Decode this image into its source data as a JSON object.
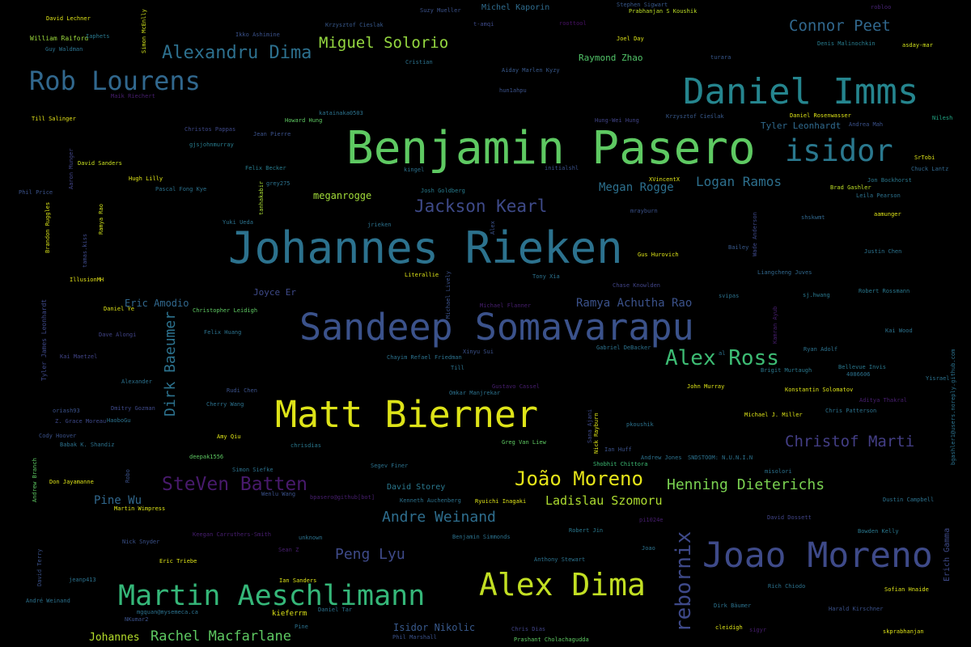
{
  "words": [
    {
      "text": "Benjamin Pasero",
      "color": "#5ec962"
    },
    {
      "text": "Johannes Rieken",
      "color": "#2c728e"
    },
    {
      "text": "Daniel Imms",
      "color": "#25858e"
    },
    {
      "text": "Sandeep Somavarapu",
      "color": "#3b528b"
    },
    {
      "text": "Matt Bierner",
      "color": "#dde318"
    },
    {
      "text": "Joao Moreno",
      "color": "#3e4a89"
    },
    {
      "text": "isidor",
      "color": "#2a788e"
    },
    {
      "text": "Alex Dima",
      "color": "#c2df23"
    },
    {
      "text": "Martin Aeschlimann",
      "color": "#35b779"
    },
    {
      "text": "Rob Lourens",
      "color": "#31688e"
    },
    {
      "text": "rebornix",
      "color": "#3e4989"
    },
    {
      "text": "Alex Ross",
      "color": "#3dbc74"
    },
    {
      "text": "Jackson Kearl",
      "color": "#3e4a89"
    },
    {
      "text": "SteVen Batten",
      "color": "#481a6c"
    },
    {
      "text": "João Moreno",
      "color": "#e5e419"
    },
    {
      "text": "Alexandru Dima",
      "color": "#2d708e"
    },
    {
      "text": "Miguel Solorio",
      "color": "#95d840"
    },
    {
      "text": "Christof Marti",
      "color": "#433e85"
    },
    {
      "text": "Connor Peet",
      "color": "#31688e"
    },
    {
      "text": "Henning Dieterichs",
      "color": "#7ad151"
    },
    {
      "text": "Dirk Baeumer",
      "color": "#2c728e"
    },
    {
      "text": "Andre Weinand",
      "color": "#2e6e8e"
    },
    {
      "text": "Rachel Macfarlane",
      "color": "#5ec962"
    },
    {
      "text": "Peng Lyu",
      "color": "#3e4a89"
    },
    {
      "text": "Ladislau Szomoru",
      "color": "#addc30"
    },
    {
      "text": "Logan Ramos",
      "color": "#2d708e"
    },
    {
      "text": "Megan Rogge",
      "color": "#2d708e"
    },
    {
      "text": "Ramya Achutha Rao",
      "color": "#3b528b"
    },
    {
      "text": "Pine Wu",
      "color": "#31688e"
    },
    {
      "text": "Johannes",
      "color": "#b5de2b"
    },
    {
      "text": "Raymond Zhao",
      "color": "#52c569"
    },
    {
      "text": "meganrogge",
      "color": "#a0da39"
    },
    {
      "text": "Tyler Leonhardt",
      "color": "#306a8e"
    },
    {
      "text": "Isidor Nikolic",
      "color": "#38598c"
    },
    {
      "text": "Eric Amodio",
      "color": "#31688e"
    },
    {
      "text": "Joyce Er",
      "color": "#3e4a89"
    },
    {
      "text": "David Storey",
      "color": "#2a788e"
    },
    {
      "text": "Michel Kaporin",
      "color": "#2f6c8e"
    },
    {
      "text": "Erich Gamma",
      "color": "#3e4a89"
    },
    {
      "text": "David Lechner",
      "color": "#dde318"
    },
    {
      "text": "William Raiford",
      "color": "#9bd93c"
    },
    {
      "text": "Guy Waldman",
      "color": "#2c728e"
    },
    {
      "text": "Simon McEnlly",
      "color": "#d0e11c"
    },
    {
      "text": "Iaphets",
      "color": "#2a788e"
    },
    {
      "text": "Ikko Ashimine",
      "color": "#3b528b"
    },
    {
      "text": "Krzysztof Cieslak",
      "color": "#38598c"
    },
    {
      "text": "Suzy Mueller",
      "color": "#3b528b"
    },
    {
      "text": "t-amqi",
      "color": "#3e4a89"
    },
    {
      "text": "Cristian",
      "color": "#2c728e"
    },
    {
      "text": "roottool",
      "color": "#471164"
    },
    {
      "text": "Stephen Sigwart",
      "color": "#38598c"
    },
    {
      "text": "Prabhanjan S Koushik",
      "color": "#bddf26"
    },
    {
      "text": "robloo",
      "color": "#482475"
    },
    {
      "text": "Joel Day",
      "color": "#dde318"
    },
    {
      "text": "turara",
      "color": "#38588c"
    },
    {
      "text": "Denis Malinochkin",
      "color": "#287c8e"
    },
    {
      "text": "asday-mar",
      "color": "#d0e11c"
    },
    {
      "text": "Aiday Marlen Kyzy",
      "color": "#38598c"
    },
    {
      "text": "hun1ahpu",
      "color": "#3b528b"
    },
    {
      "text": "Maik Riechert",
      "color": "#481f70"
    },
    {
      "text": "Till Salinger",
      "color": "#e5e419"
    },
    {
      "text": "Christos Pappas",
      "color": "#3e4989"
    },
    {
      "text": "katainaka0503",
      "color": "#2c728e"
    },
    {
      "text": "Howard Hung",
      "color": "#5ec962"
    },
    {
      "text": "Jean Pierre",
      "color": "#3b528b"
    },
    {
      "text": "gjsjohnmurray",
      "color": "#287c8e"
    },
    {
      "text": "Hung-Wei Hung",
      "color": "#414487"
    },
    {
      "text": "Krzysztof Cieślak",
      "color": "#38598c"
    },
    {
      "text": "Daniel Rosenwasser",
      "color": "#dde318"
    },
    {
      "text": "Andrea Mah",
      "color": "#3b528b"
    },
    {
      "text": "Nilesh",
      "color": "#22a785"
    },
    {
      "text": "SrTobi",
      "color": "#dde318"
    },
    {
      "text": "Chuck Lantz",
      "color": "#31688e"
    },
    {
      "text": "David Sanders",
      "color": "#c8e020"
    },
    {
      "text": "Felix Becker",
      "color": "#287c8e"
    },
    {
      "text": "Hugh Lilly",
      "color": "#dde318"
    },
    {
      "text": "Pascal Fong Kye",
      "color": "#2c728e"
    },
    {
      "text": "grey275",
      "color": "#2c728e"
    },
    {
      "text": "kingel",
      "color": "#2c728e"
    },
    {
      "text": "initialshl",
      "color": "#3b528b"
    },
    {
      "text": "XVincentX",
      "color": "#dde318"
    },
    {
      "text": "Jon Bockhorst",
      "color": "#2a788e"
    },
    {
      "text": "Phil Price",
      "color": "#3b528b"
    },
    {
      "text": "Aaron Munger",
      "color": "#414487"
    },
    {
      "text": "Josh Goldberg",
      "color": "#287c8e"
    },
    {
      "text": "Brad Gashler",
      "color": "#bddf26"
    },
    {
      "text": "Leila Pearson",
      "color": "#2c728e"
    },
    {
      "text": "Brandon Ruggles",
      "color": "#d8e219"
    },
    {
      "text": "Ramya Rao",
      "color": "#d0e11c"
    },
    {
      "text": "tanhakabir",
      "color": "#a8db34"
    },
    {
      "text": "mrayburn",
      "color": "#3b528b"
    },
    {
      "text": "Yuki Ueda",
      "color": "#2c728e"
    },
    {
      "text": "jrieken",
      "color": "#2c728e"
    },
    {
      "text": "Alex",
      "color": "#3b528b"
    },
    {
      "text": "Wade Anderson",
      "color": "#3e4989"
    },
    {
      "text": "shskwmt",
      "color": "#31688e"
    },
    {
      "text": "aamunger",
      "color": "#dde318"
    },
    {
      "text": "tamas.kiss",
      "color": "#3e4a89"
    },
    {
      "text": "Gus Hurovich",
      "color": "#dde318"
    },
    {
      "text": "Bailey",
      "color": "#38598c"
    },
    {
      "text": "Justin Chen",
      "color": "#2c728e"
    },
    {
      "text": "IllusionMH",
      "color": "#e5e419"
    },
    {
      "text": "Literallie",
      "color": "#dde318"
    },
    {
      "text": "Michael Lively",
      "color": "#3b528b"
    },
    {
      "text": "Tony Xia",
      "color": "#2c728e"
    },
    {
      "text": "Liangcheng Juves",
      "color": "#31688e"
    },
    {
      "text": "Tyler James Leonhardt",
      "color": "#3e4989"
    },
    {
      "text": "Daniel Ye",
      "color": "#dde318"
    },
    {
      "text": "Christopher Leidigh",
      "color": "#5ec962"
    },
    {
      "text": "Chase Knowlden",
      "color": "#414487"
    },
    {
      "text": "Michael Flanner",
      "color": "#481f70"
    },
    {
      "text": "svipas",
      "color": "#2c728e"
    },
    {
      "text": "sj.hwang",
      "color": "#2a788e"
    },
    {
      "text": "Robert Rossmann",
      "color": "#2a788e"
    },
    {
      "text": "Dave Alongi",
      "color": "#414487"
    },
    {
      "text": "Felix Huang",
      "color": "#2c728e"
    },
    {
      "text": "Kamran Ayub",
      "color": "#481f70"
    },
    {
      "text": "Kai Wood",
      "color": "#2c728e"
    },
    {
      "text": "Kai Maetzel",
      "color": "#414487"
    },
    {
      "text": "Chayim Refael Friedman",
      "color": "#2c728e"
    },
    {
      "text": "Xinyu Sui",
      "color": "#3b528b"
    },
    {
      "text": "Gabriel DeBacker",
      "color": "#2c728e"
    },
    {
      "text": "al",
      "color": "#2c728e"
    },
    {
      "text": "Ryan Adolf",
      "color": "#2c728e"
    },
    {
      "text": "Till",
      "color": "#2c728e"
    },
    {
      "text": "Brigit Murtaugh",
      "color": "#2a788e"
    },
    {
      "text": "Bellevue Invis",
      "color": "#2a788e"
    },
    {
      "text": "4086606",
      "color": "#2c728e"
    },
    {
      "text": "bgashler1@users.noreply.github.com",
      "color": "#2c728e"
    },
    {
      "text": "Yisrael",
      "color": "#2c728e"
    },
    {
      "text": "Alexander",
      "color": "#2c728e"
    },
    {
      "text": "Rudi Chen",
      "color": "#3b528b"
    },
    {
      "text": "Gustavo Cassel",
      "color": "#481f70"
    },
    {
      "text": "Omkar Manjrekar",
      "color": "#2c728e"
    },
    {
      "text": "John Murray",
      "color": "#dde318"
    },
    {
      "text": "Konstantin Solomatov",
      "color": "#dde318"
    },
    {
      "text": "Aditya Thakral",
      "color": "#481f70"
    },
    {
      "text": "Cherry Wang",
      "color": "#2c728e"
    },
    {
      "text": "oriash93",
      "color": "#3b528b"
    },
    {
      "text": "Dmitry Gozman",
      "color": "#3e4989"
    },
    {
      "text": "Z. Grace Moreau",
      "color": "#3e4989"
    },
    {
      "text": "HaoboGu",
      "color": "#2c728e"
    },
    {
      "text": "Michael J. Miller",
      "color": "#dde318"
    },
    {
      "text": "Chris Patterson",
      "color": "#2c728e"
    },
    {
      "text": "pkoushik",
      "color": "#2c728e"
    },
    {
      "text": "Cody Hoover",
      "color": "#3b528b"
    },
    {
      "text": "Amy Qiu",
      "color": "#dde318"
    },
    {
      "text": "chrisdias",
      "color": "#2a788e"
    },
    {
      "text": "Sana Ajani",
      "color": "#3e4989"
    },
    {
      "text": "Nick Rayburn",
      "color": "#dde318"
    },
    {
      "text": "Greg Van Liew",
      "color": "#5ec962"
    },
    {
      "text": "Ian Huff",
      "color": "#3b528b"
    },
    {
      "text": "Babak K. Shandiz",
      "color": "#2c728e"
    },
    {
      "text": "deepak1556",
      "color": "#5ec962"
    },
    {
      "text": "Andrew Jones",
      "color": "#2c728e"
    },
    {
      "text": "SNDSTOOM: N.U.N.I.N",
      "color": "#2c728e"
    },
    {
      "text": "Shobhit Chittora",
      "color": "#3dbc74"
    },
    {
      "text": "Andrew Branch",
      "color": "#5ec962"
    },
    {
      "text": "Robo",
      "color": "#3b528b"
    },
    {
      "text": "Simon Siefke",
      "color": "#2c728e"
    },
    {
      "text": "Segev Finer",
      "color": "#2c728e"
    },
    {
      "text": "misolori",
      "color": "#2c728e"
    },
    {
      "text": "Don Jayamanne",
      "color": "#dde318"
    },
    {
      "text": "Wenlu Wang",
      "color": "#3b528b"
    },
    {
      "text": "bpasero@github[bot]",
      "color": "#481f70"
    },
    {
      "text": "Kenneth Auchenberg",
      "color": "#2c728e"
    },
    {
      "text": "Ryuichi Inagaki",
      "color": "#dde318"
    },
    {
      "text": "Dustin Campbell",
      "color": "#2c728e"
    },
    {
      "text": "Martin Wimpress",
      "color": "#dde318"
    },
    {
      "text": "pi1024e",
      "color": "#481f70"
    },
    {
      "text": "David Dossett",
      "color": "#414487"
    },
    {
      "text": "Keegan Carruthers-Smith",
      "color": "#481f70"
    },
    {
      "text": "unknown",
      "color": "#2c728e"
    },
    {
      "text": "Benjamin Simmonds",
      "color": "#2c728e"
    },
    {
      "text": "Robert Jin",
      "color": "#2a788e"
    },
    {
      "text": "Bowden Kelly",
      "color": "#2a788e"
    },
    {
      "text": "Nick Snyder",
      "color": "#3b528b"
    },
    {
      "text": "Sean Z",
      "color": "#481f70"
    },
    {
      "text": "Joao",
      "color": "#2c728e"
    },
    {
      "text": "Eric Triebe",
      "color": "#dde318"
    },
    {
      "text": "Anthony Stewart",
      "color": "#2c728e"
    },
    {
      "text": "David Terry",
      "color": "#3b528b"
    },
    {
      "text": "jeanp413",
      "color": "#2c728e"
    },
    {
      "text": "Ian Sanders",
      "color": "#dde318"
    },
    {
      "text": "Rich Chiodo",
      "color": "#2c728e"
    },
    {
      "text": "Sofian Hnaide",
      "color": "#dde318"
    },
    {
      "text": "André Weinand",
      "color": "#2c728e"
    },
    {
      "text": "mgquan@mysemeca.ca",
      "color": "#2c728e"
    },
    {
      "text": "Daniel Tar",
      "color": "#2c728e"
    },
    {
      "text": "kieferrm",
      "color": "#dde318"
    },
    {
      "text": "Dirk Bäumer",
      "color": "#2c728e"
    },
    {
      "text": "Harald Kirschner",
      "color": "#3b528b"
    },
    {
      "text": "NKumar2",
      "color": "#3b528b"
    },
    {
      "text": "Pine",
      "color": "#2c728e"
    },
    {
      "text": "Chris Dias",
      "color": "#414487"
    },
    {
      "text": "cleidigh",
      "color": "#dde318"
    },
    {
      "text": "Phil Marshall",
      "color": "#3b528b"
    },
    {
      "text": "Prashant Cholachagudda",
      "color": "#5ec962"
    },
    {
      "text": "skprabhanjan",
      "color": "#dde318"
    },
    {
      "text": "sigyr",
      "color": "#481f70"
    }
  ]
}
